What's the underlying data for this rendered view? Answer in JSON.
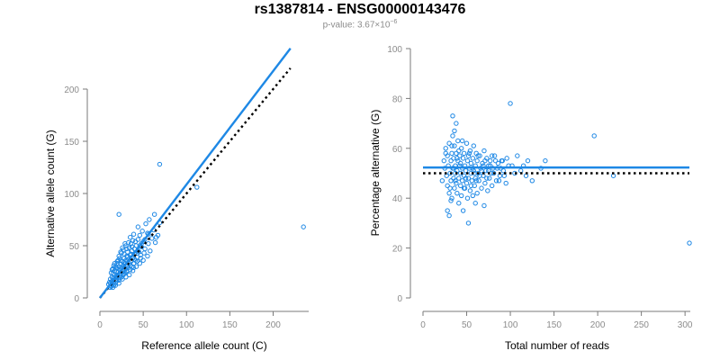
{
  "header": {
    "title": "rs1387814 - ENSG00000143476",
    "pvalue_prefix": "p-value: 3.67×10",
    "pvalue_exponent": "−6"
  },
  "colors": {
    "points": "#1e88e5",
    "fit_line": "#1e88e5",
    "reference_line": "#000000"
  },
  "chart_data": [
    {
      "type": "scatter",
      "xlabel": "Reference allele count (C)",
      "ylabel": "Alternative allele count (G)",
      "xlim": [
        0,
        240
      ],
      "ylim": [
        0,
        200
      ],
      "xticks": [
        0,
        50,
        100,
        150,
        200
      ],
      "yticks": [
        0,
        50,
        100,
        150,
        200
      ],
      "grid": false,
      "points": [
        [
          10,
          13
        ],
        [
          11,
          15
        ],
        [
          12,
          14
        ],
        [
          12,
          18
        ],
        [
          13,
          12
        ],
        [
          14,
          16
        ],
        [
          14,
          20
        ],
        [
          15,
          17
        ],
        [
          15,
          23
        ],
        [
          16,
          15
        ],
        [
          16,
          19
        ],
        [
          17,
          22
        ],
        [
          17,
          26
        ],
        [
          18,
          20
        ],
        [
          18,
          14
        ],
        [
          19,
          25
        ],
        [
          19,
          18
        ],
        [
          20,
          22
        ],
        [
          20,
          28
        ],
        [
          21,
          19
        ],
        [
          21,
          25
        ],
        [
          22,
          30
        ],
        [
          22,
          17
        ],
        [
          23,
          21
        ],
        [
          23,
          27
        ],
        [
          24,
          32
        ],
        [
          24,
          23
        ],
        [
          25,
          20
        ],
        [
          25,
          29
        ],
        [
          26,
          35
        ],
        [
          26,
          25
        ],
        [
          27,
          31
        ],
        [
          27,
          22
        ],
        [
          28,
          27
        ],
        [
          28,
          38
        ],
        [
          29,
          24
        ],
        [
          29,
          33
        ],
        [
          30,
          28
        ],
        [
          30,
          36
        ],
        [
          31,
          40
        ],
        [
          31,
          26
        ],
        [
          32,
          31
        ],
        [
          32,
          44
        ],
        [
          33,
          29
        ],
        [
          33,
          37
        ],
        [
          34,
          48
        ],
        [
          34,
          33
        ],
        [
          35,
          27
        ],
        [
          35,
          41
        ],
        [
          36,
          35
        ],
        [
          36,
          52
        ],
        [
          37,
          30
        ],
        [
          37,
          45
        ],
        [
          38,
          38
        ],
        [
          38,
          55
        ],
        [
          39,
          33
        ],
        [
          40,
          42
        ],
        [
          40,
          47
        ],
        [
          41,
          36
        ],
        [
          42,
          50
        ],
        [
          43,
          39
        ],
        [
          44,
          56
        ],
        [
          45,
          44
        ],
        [
          46,
          60
        ],
        [
          47,
          38
        ],
        [
          48,
          49
        ],
        [
          50,
          54
        ],
        [
          52,
          47
        ],
        [
          55,
          62
        ],
        [
          56,
          52
        ],
        [
          58,
          45
        ],
        [
          60,
          57
        ],
        [
          62,
          65
        ],
        [
          64,
          53
        ],
        [
          67,
          60
        ],
        [
          69,
          72
        ],
        [
          18,
          30
        ],
        [
          20,
          35
        ],
        [
          22,
          40
        ],
        [
          24,
          44
        ],
        [
          26,
          48
        ],
        [
          28,
          42
        ],
        [
          30,
          50
        ],
        [
          15,
          28
        ],
        [
          17,
          33
        ],
        [
          19,
          29
        ],
        [
          21,
          36
        ],
        [
          23,
          38
        ],
        [
          25,
          43
        ],
        [
          27,
          46
        ],
        [
          29,
          52
        ],
        [
          13,
          24
        ],
        [
          14,
          27
        ],
        [
          16,
          31
        ],
        [
          31,
          47
        ],
        [
          33,
          53
        ],
        [
          35,
          58
        ],
        [
          37,
          49
        ],
        [
          39,
          61
        ],
        [
          41,
          54
        ],
        [
          44,
          68
        ],
        [
          46,
          50
        ],
        [
          49,
          64
        ],
        [
          53,
          71
        ],
        [
          57,
          75
        ],
        [
          63,
          80
        ],
        [
          65,
          58
        ],
        [
          15,
          10
        ],
        [
          18,
          12
        ],
        [
          22,
          14
        ],
        [
          26,
          18
        ],
        [
          30,
          20
        ],
        [
          34,
          22
        ],
        [
          38,
          26
        ],
        [
          42,
          30
        ],
        [
          46,
          33
        ],
        [
          50,
          36
        ],
        [
          55,
          40
        ],
        [
          12,
          10
        ],
        [
          13,
          11
        ],
        [
          16,
          12
        ],
        [
          19,
          16
        ],
        [
          23,
          19
        ],
        [
          27,
          23
        ],
        [
          31,
          25
        ],
        [
          35,
          31
        ],
        [
          39,
          29
        ],
        [
          43,
          35
        ],
        [
          47,
          41
        ],
        [
          51,
          43
        ],
        [
          20,
          33
        ],
        [
          24,
          36
        ],
        [
          28,
          34
        ],
        [
          32,
          39
        ],
        [
          36,
          42
        ],
        [
          40,
          37
        ],
        [
          44,
          45
        ],
        [
          48,
          52
        ],
        [
          52,
          56
        ],
        [
          56,
          61
        ],
        [
          22,
          80
        ],
        [
          69,
          128
        ],
        [
          112,
          106
        ],
        [
          235,
          68
        ]
      ],
      "fit_line": [
        [
          0,
          0
        ],
        [
          220,
          239
        ]
      ],
      "reference_line": [
        [
          0,
          0
        ],
        [
          220,
          220
        ]
      ]
    },
    {
      "type": "scatter",
      "xlabel": "Total number of reads",
      "ylabel": "Percentage alternative (G)",
      "xlim": [
        0,
        305
      ],
      "ylim": [
        0,
        100
      ],
      "xticks": [
        0,
        50,
        100,
        150,
        200,
        250,
        300
      ],
      "yticks": [
        0,
        20,
        40,
        60,
        80,
        100
      ],
      "grid": false,
      "points": [
        [
          22,
          47
        ],
        [
          24,
          55
        ],
        [
          25,
          52
        ],
        [
          26,
          60
        ],
        [
          27,
          49
        ],
        [
          28,
          45
        ],
        [
          28,
          57
        ],
        [
          29,
          53
        ],
        [
          30,
          62
        ],
        [
          30,
          42
        ],
        [
          31,
          50
        ],
        [
          32,
          55
        ],
        [
          32,
          47
        ],
        [
          33,
          58
        ],
        [
          33,
          40
        ],
        [
          34,
          52
        ],
        [
          34,
          65
        ],
        [
          35,
          48
        ],
        [
          35,
          56
        ],
        [
          36,
          44
        ],
        [
          36,
          61
        ],
        [
          37,
          50
        ],
        [
          37,
          53
        ],
        [
          38,
          46
        ],
        [
          38,
          58
        ],
        [
          39,
          51
        ],
        [
          39,
          42
        ],
        [
          40,
          55
        ],
        [
          40,
          63
        ],
        [
          41,
          48
        ],
        [
          41,
          38
        ],
        [
          42,
          53
        ],
        [
          42,
          57
        ],
        [
          43,
          45
        ],
        [
          43,
          50
        ],
        [
          44,
          60
        ],
        [
          44,
          41
        ],
        [
          45,
          52
        ],
        [
          45,
          47
        ],
        [
          46,
          56
        ],
        [
          46,
          35
        ],
        [
          47,
          49
        ],
        [
          47,
          58
        ],
        [
          48,
          44
        ],
        [
          48,
          53
        ],
        [
          49,
          51
        ],
        [
          50,
          62
        ],
        [
          50,
          46
        ],
        [
          51,
          55
        ],
        [
          51,
          40
        ],
        [
          52,
          48
        ],
        [
          52,
          57
        ],
        [
          53,
          52
        ],
        [
          54,
          43
        ],
        [
          54,
          59
        ],
        [
          55,
          50
        ],
        [
          55,
          54
        ],
        [
          56,
          47
        ],
        [
          57,
          56
        ],
        [
          57,
          41
        ],
        [
          58,
          51
        ],
        [
          58,
          61
        ],
        [
          59,
          45
        ],
        [
          60,
          53
        ],
        [
          60,
          48
        ],
        [
          61,
          58
        ],
        [
          62,
          42
        ],
        [
          62,
          55
        ],
        [
          63,
          50
        ],
        [
          64,
          47
        ],
        [
          65,
          57
        ],
        [
          66,
          52
        ],
        [
          67,
          44
        ],
        [
          68,
          54
        ],
        [
          69,
          49
        ],
        [
          70,
          59
        ],
        [
          71,
          46
        ],
        [
          72,
          51
        ],
        [
          73,
          56
        ],
        [
          74,
          43
        ],
        [
          75,
          53
        ],
        [
          76,
          48
        ],
        [
          77,
          55
        ],
        [
          78,
          50
        ],
        [
          79,
          45
        ],
        [
          80,
          52
        ],
        [
          82,
          57
        ],
        [
          84,
          47
        ],
        [
          86,
          54
        ],
        [
          88,
          49
        ],
        [
          90,
          55
        ],
        [
          92,
          51
        ],
        [
          95,
          46
        ],
        [
          98,
          53
        ],
        [
          28,
          35
        ],
        [
          30,
          33
        ],
        [
          32,
          39
        ],
        [
          34,
          73
        ],
        [
          36,
          67
        ],
        [
          38,
          70
        ],
        [
          52,
          30
        ],
        [
          60,
          38
        ],
        [
          70,
          37
        ],
        [
          100,
          78
        ],
        [
          120,
          55
        ],
        [
          125,
          47
        ],
        [
          135,
          52
        ],
        [
          140,
          55
        ],
        [
          196,
          65
        ],
        [
          218,
          49
        ],
        [
          305,
          22
        ],
        [
          26,
          58
        ],
        [
          31,
          44
        ],
        [
          33,
          61
        ],
        [
          35,
          52
        ],
        [
          37,
          47
        ],
        [
          39,
          56
        ],
        [
          41,
          59
        ],
        [
          43,
          54
        ],
        [
          45,
          63
        ],
        [
          47,
          44
        ],
        [
          49,
          48
        ],
        [
          53,
          58
        ],
        [
          55,
          45
        ],
        [
          57,
          52
        ],
        [
          59,
          50
        ],
        [
          61,
          47
        ],
        [
          63,
          57
        ],
        [
          65,
          49
        ],
        [
          67,
          51
        ],
        [
          69,
          53
        ],
        [
          71,
          55
        ],
        [
          73,
          48
        ],
        [
          75,
          51
        ],
        [
          77,
          53
        ],
        [
          79,
          57
        ],
        [
          81,
          50
        ],
        [
          83,
          55
        ],
        [
          85,
          52
        ],
        [
          87,
          47
        ],
        [
          89,
          52
        ],
        [
          91,
          55
        ],
        [
          93,
          49
        ],
        [
          96,
          56
        ],
        [
          102,
          53
        ],
        [
          105,
          50
        ],
        [
          108,
          57
        ],
        [
          112,
          51
        ],
        [
          115,
          53
        ],
        [
          118,
          49
        ]
      ],
      "fit_line": [
        [
          0,
          52.3
        ],
        [
          305,
          52.3
        ]
      ],
      "reference_line": [
        [
          0,
          50
        ],
        [
          305,
          50
        ]
      ]
    }
  ]
}
